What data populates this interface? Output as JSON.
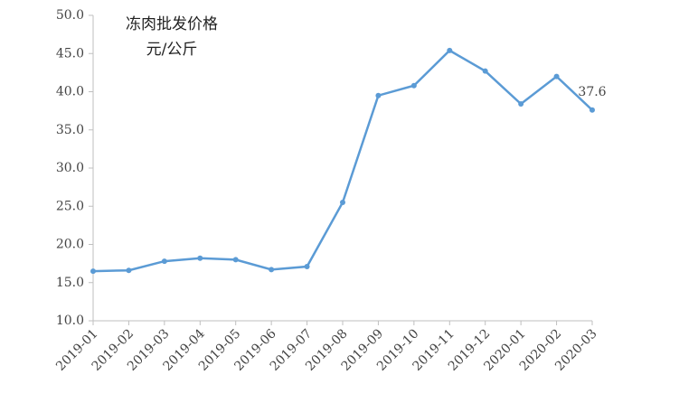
{
  "chart_data": {
    "type": "line",
    "title": "冻肉批发价格",
    "subtitle": "元/公斤",
    "categories": [
      "2019-01",
      "2019-02",
      "2019-03",
      "2019-04",
      "2019-05",
      "2019-06",
      "2019-07",
      "2019-08",
      "2019-09",
      "2019-10",
      "2019-11",
      "2019-12",
      "2020-01",
      "2020-02",
      "2020-03"
    ],
    "values": [
      16.5,
      16.6,
      17.8,
      18.2,
      18.0,
      16.7,
      17.1,
      25.5,
      39.5,
      40.8,
      45.4,
      42.7,
      38.4,
      42.0,
      37.6
    ],
    "value_labels": [
      null,
      null,
      null,
      null,
      null,
      null,
      null,
      null,
      null,
      null,
      null,
      null,
      null,
      null,
      "37.6"
    ],
    "color": "#5b9bd5",
    "ylim": [
      10,
      50
    ],
    "yticks": [
      {
        "value": 10,
        "label": "10.0"
      },
      {
        "value": 15,
        "label": "15.0"
      },
      {
        "value": 20,
        "label": "20.0"
      },
      {
        "value": 25,
        "label": "25.0"
      },
      {
        "value": 30,
        "label": "30.0"
      },
      {
        "value": 35,
        "label": "35.0"
      },
      {
        "value": 40,
        "label": "40.0"
      },
      {
        "value": 45,
        "label": "45.0"
      },
      {
        "value": 50,
        "label": "50.0"
      }
    ],
    "grid": false
  }
}
